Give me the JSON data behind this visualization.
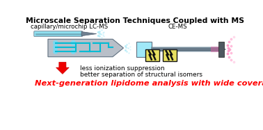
{
  "title": "Microscale Separation Techniques Coupled with MS",
  "label_left": "capillary/microchip LC-MS",
  "label_right": "CE-MS",
  "benefit1": "less ionization suppression",
  "benefit2": "better separation of structural isomers",
  "bottom_text": "Next-generation lipidome analysis with wide coverage",
  "bg_color": "#ffffff",
  "title_color": "#000000",
  "bottom_text_color": "#ff0000",
  "chip_color": "#b8bfc8",
  "channel_color": "#00bcd4",
  "tube_color": "#90e0f0",
  "dark_color": "#404040",
  "needle_color": "#708090",
  "spray_color": "#a0e8f8",
  "pink_spray": "#ff88cc",
  "lightning_bg": "#f0e840",
  "ce_block_color": "#505860"
}
